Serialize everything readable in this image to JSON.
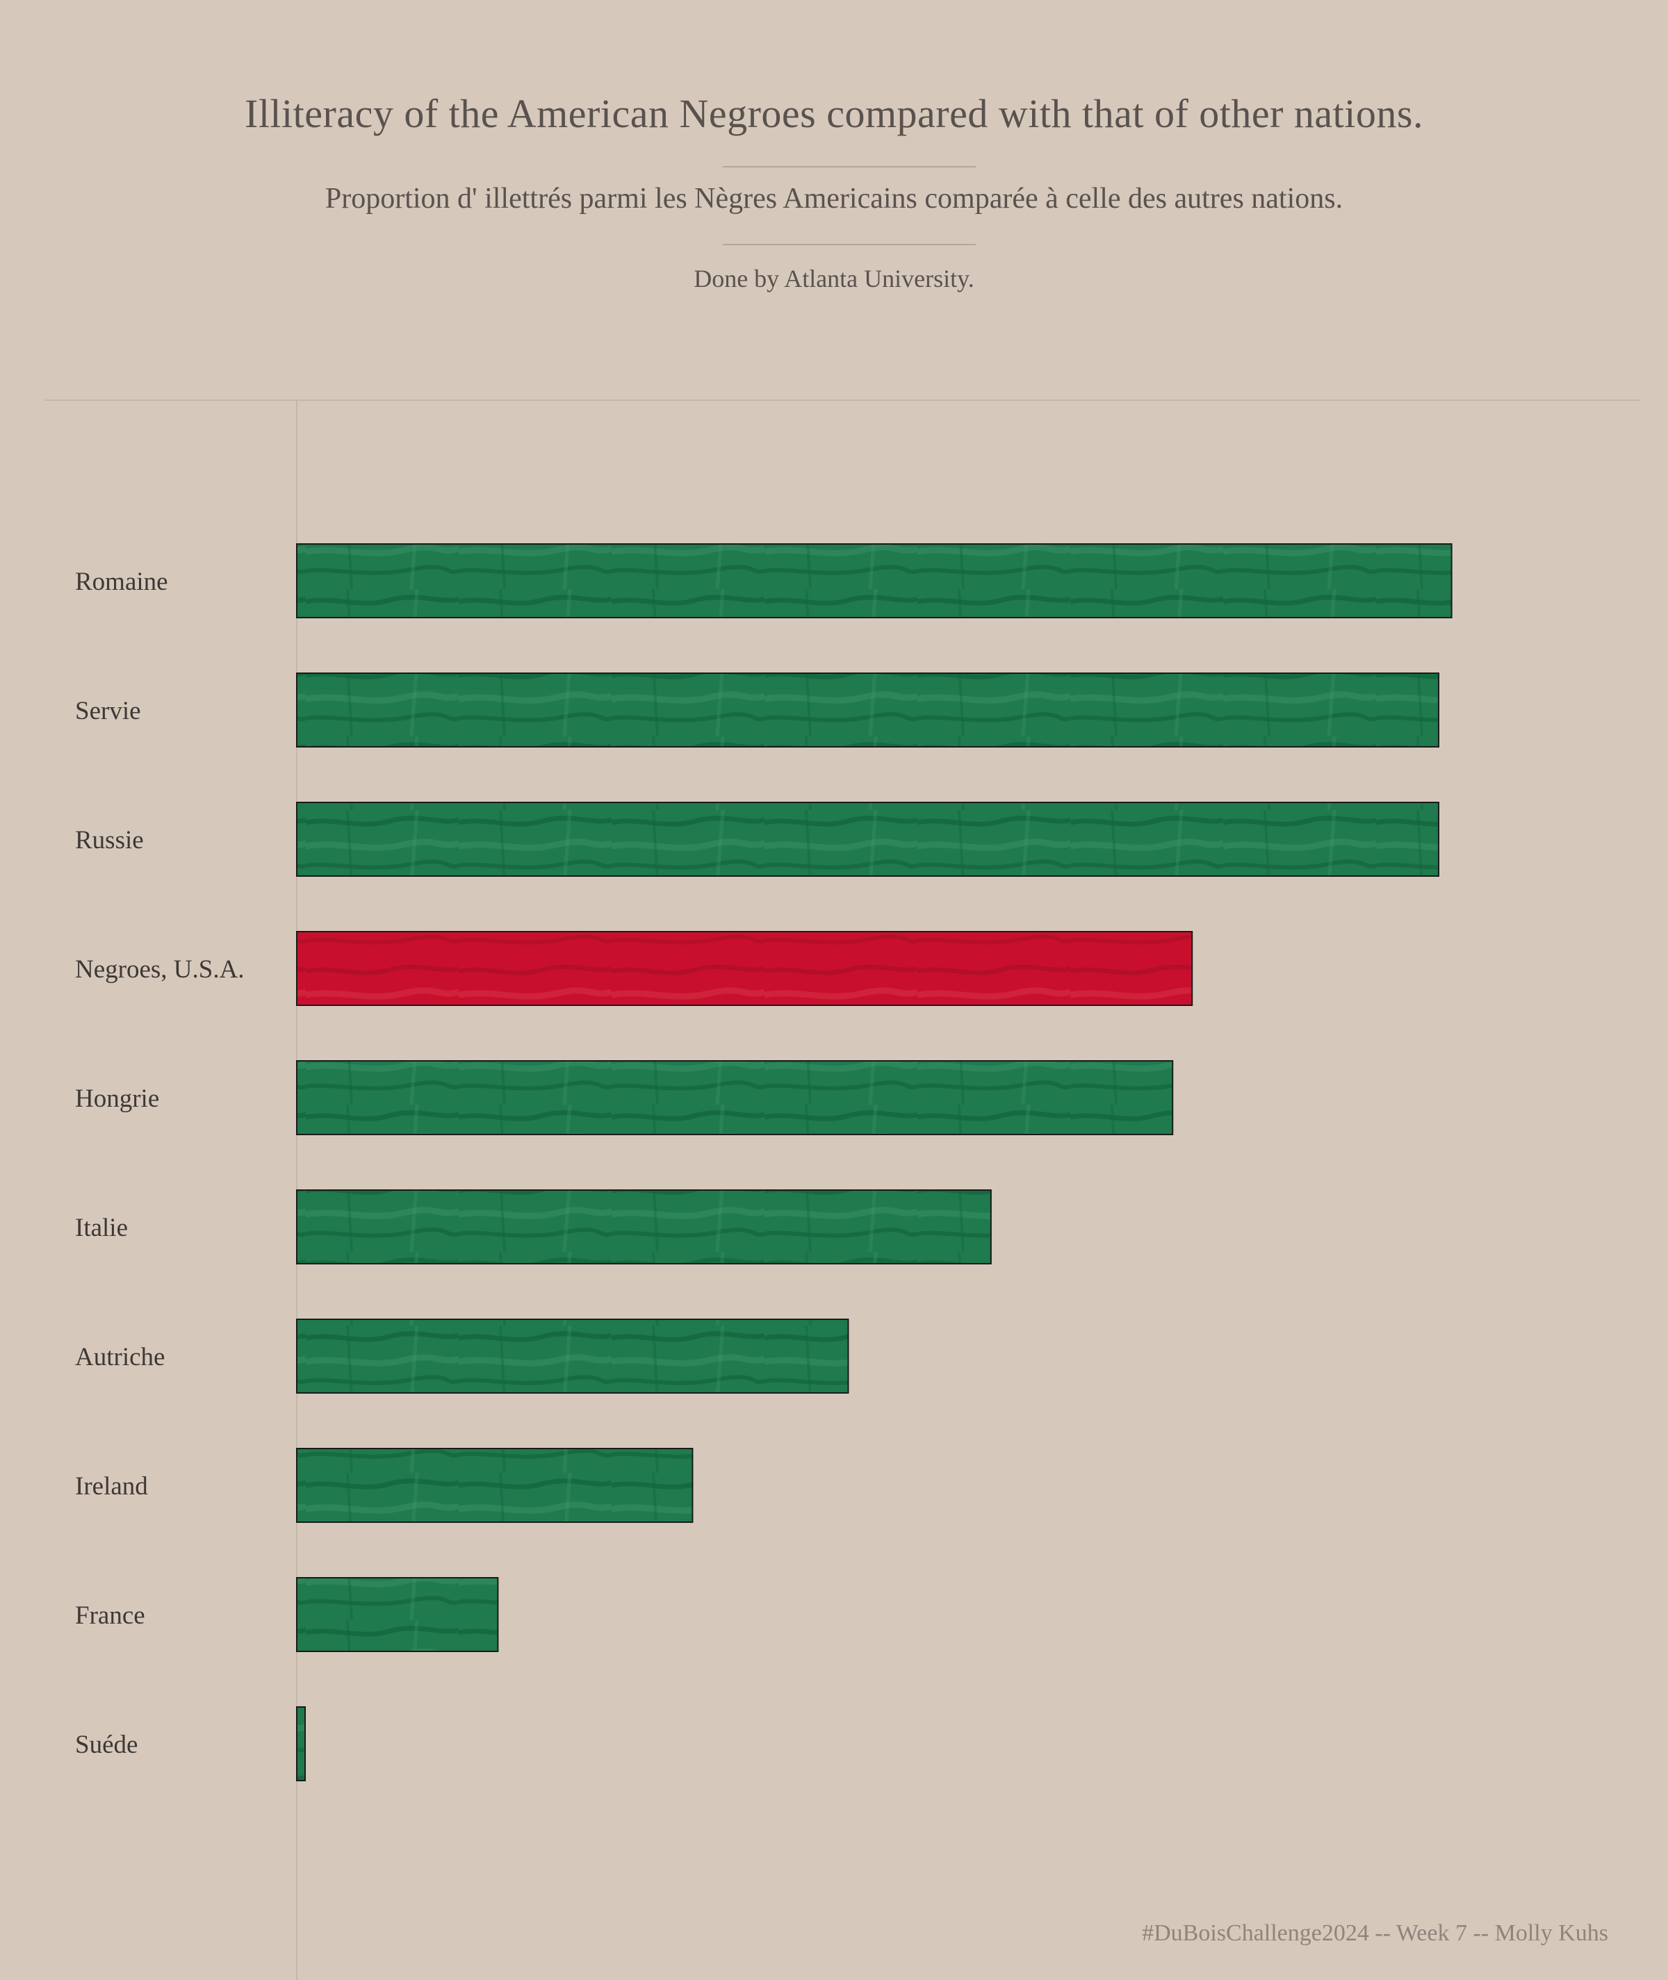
{
  "header": {
    "title": "Illiteracy of the American Negroes compared with that of other nations.",
    "subtitle": "Proportion d' illettrés parmi les Nègres Americains comparée à celle des autres nations.",
    "credit": "Done by Atlanta University."
  },
  "footer": {
    "text": "#DuBoisChallenge2024 -- Week 7 -- Molly Kuhs"
  },
  "colors": {
    "background": "#d6c9bb",
    "green": "#1f7a4d",
    "green_dark": "#0f5c36",
    "red": "#c8102e",
    "red_dark": "#a00d25",
    "outline": "#1a1a1a"
  },
  "chart_data": {
    "type": "bar",
    "orientation": "horizontal",
    "title": "Illiteracy of the American Negroes compared with that of other nations.",
    "categories": [
      "Romaine",
      "Servie",
      "Russie",
      "Negroes, U.S.A.",
      "Hongrie",
      "Italie",
      "Autriche",
      "Ireland",
      "France",
      "Suéde"
    ],
    "values": [
      89,
      88,
      88,
      69,
      67.5,
      53.5,
      42.5,
      30.5,
      15.5,
      0.5
    ],
    "highlight": "Negroes, U.S.A.",
    "value_unit": "percent illiterate (estimated, no axis shown)",
    "xlim": [
      0,
      100
    ],
    "grid": false,
    "legend": "none"
  }
}
